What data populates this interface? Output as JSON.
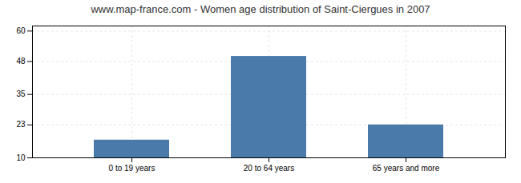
{
  "chart_data": {
    "type": "bar",
    "title": "www.map-france.com - Women age distribution of Saint-Ciergues in 2007",
    "categories": [
      "0 to 19 years",
      "20 to 64 years",
      "65 years and more"
    ],
    "values": [
      17,
      50,
      23
    ],
    "color": "#4a7aaa",
    "ylim": [
      10,
      62
    ],
    "yticks": [
      10,
      23,
      35,
      48,
      60
    ],
    "grid": true
  }
}
